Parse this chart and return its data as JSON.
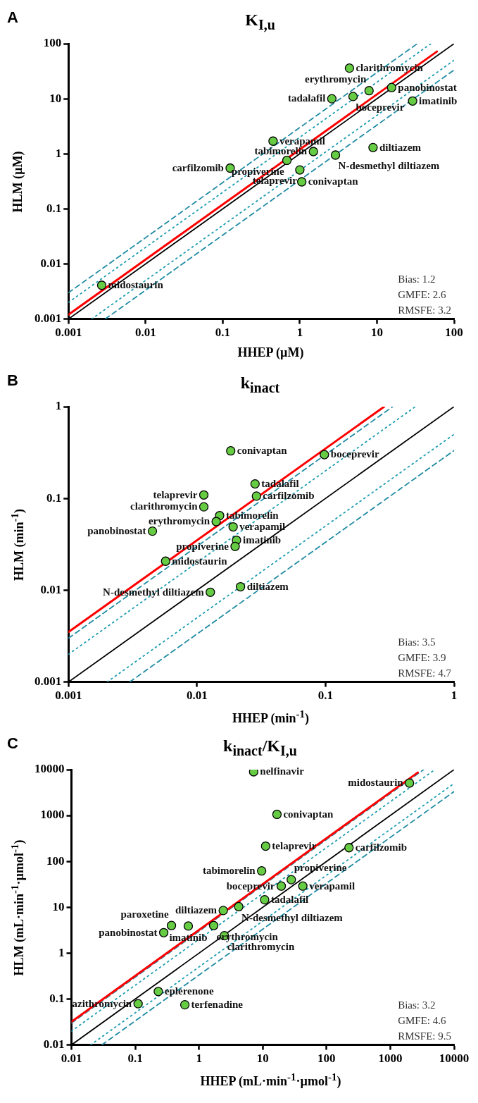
{
  "chart_data": [
    {
      "type": "scatter",
      "title": "K$_{I,u}$",
      "xlabel": "HHEP (µM)",
      "ylabel": "HLM (µM)",
      "log": "xy",
      "grid": false,
      "legend": false,
      "marker": "circle",
      "xlim": [
        0.001,
        100
      ],
      "ylim": [
        0.001,
        100
      ],
      "xticks": [
        0.001,
        0.01,
        0.1,
        1,
        10,
        100
      ],
      "yticks": [
        0.001,
        0.01,
        0.1,
        1,
        10,
        100
      ],
      "series": [
        {
          "color": "#66cc44",
          "x": [
            4.4,
            7.9,
            2.6,
            4.9,
            15.5,
            29,
            0.45,
            1.5,
            8.9,
            2.9,
            0.68,
            0.125,
            1.0,
            1.06,
            0.0027
          ],
          "values": [
            36,
            14,
            10,
            11,
            16,
            9.1,
            1.7,
            1.1,
            1.3,
            0.95,
            0.76,
            0.55,
            0.51,
            0.31,
            0.0041
          ]
        },
        {
          "type": "line",
          "color": "#ff0000",
          "marker": "none",
          "line_style": "solid",
          "x": [
            0.001,
            60
          ],
          "values": [
            0.0012,
            72
          ]
        },
        {
          "type": "line",
          "color": "#000000",
          "marker": "none",
          "line_style": "solid",
          "x": [
            0.001,
            100
          ],
          "values": [
            0.001,
            100
          ]
        },
        {
          "type": "line",
          "color": "#1a9cb0",
          "marker": "none",
          "line_style": "dotted",
          "x": [
            0.001,
            50
          ],
          "values": [
            0.002,
            100
          ]
        },
        {
          "type": "line",
          "color": "#1f8ba3",
          "marker": "none",
          "line_style": "dashed",
          "x": [
            0.001,
            33.3
          ],
          "values": [
            0.003,
            100
          ]
        },
        {
          "type": "line",
          "color": "#1a9cb0",
          "marker": "none",
          "line_style": "dotted",
          "x": [
            0.002,
            100
          ],
          "values": [
            0.001,
            50
          ]
        },
        {
          "type": "line",
          "color": "#1f8ba3",
          "marker": "none",
          "line_style": "dashed",
          "x": [
            0.003,
            100
          ],
          "values": [
            0.001,
            33.3
          ]
        }
      ],
      "annotations": [
        "A",
        "Bias: 1.2",
        "GMFE: 2.6",
        "RMSFE: 3.2",
        {
          "text": "clarithromycin",
          "x": 4.4,
          "y": 36
        },
        {
          "text": "erythromycin",
          "x": 7.9,
          "y": 14
        },
        {
          "text": "tadalafil",
          "x": 2.6,
          "y": 10
        },
        {
          "text": "boceprevir",
          "x": 4.9,
          "y": 11
        },
        {
          "text": "panobinostat",
          "x": 15.5,
          "y": 16
        },
        {
          "text": "imatinib",
          "x": 29,
          "y": 9.1
        },
        {
          "text": "verapamil",
          "x": 0.45,
          "y": 1.7
        },
        {
          "text": "tabimorelin",
          "x": 1.5,
          "y": 1.1
        },
        {
          "text": "diltiazem",
          "x": 8.9,
          "y": 1.3
        },
        {
          "text": "N-desmethyl diltiazem",
          "x": 2.9,
          "y": 0.95
        },
        {
          "text": "propiverine",
          "x": 0.68,
          "y": 0.76
        },
        {
          "text": "carfilzomib",
          "x": 0.125,
          "y": 0.55
        },
        {
          "text": "telaprevir",
          "x": 1.0,
          "y": 0.51
        },
        {
          "text": "conivaptan",
          "x": 1.06,
          "y": 0.31
        },
        {
          "text": "midostaurin",
          "x": 0.0027,
          "y": 0.0041
        }
      ]
    },
    {
      "type": "scatter",
      "title": "k$_{inact}$",
      "xlabel": "HHEP (min$^{-1}$)",
      "ylabel": "HLM (min$^{-1}$)",
      "log": "xy",
      "grid": false,
      "legend": false,
      "marker": "circle",
      "xlim": [
        0.001,
        1
      ],
      "ylim": [
        0.001,
        1
      ],
      "xticks": [
        0.001,
        0.01,
        0.1,
        1
      ],
      "yticks": [
        0.001,
        0.01,
        0.1,
        1
      ],
      "series": [
        {
          "color": "#66cc44",
          "x": [
            0.0183,
            0.098,
            0.0283,
            0.029,
            0.0113,
            0.0113,
            0.015,
            0.0141,
            0.0191,
            0.0045,
            0.0203,
            0.0198,
            0.0057,
            0.0218,
            0.0127
          ],
          "values": [
            0.33,
            0.3,
            0.144,
            0.106,
            0.109,
            0.081,
            0.065,
            0.056,
            0.049,
            0.044,
            0.035,
            0.03,
            0.0207,
            0.0109,
            0.0095
          ]
        },
        {
          "type": "line",
          "color": "#ff0000",
          "marker": "none",
          "line_style": "solid",
          "x": [
            0.001,
            0.286
          ],
          "values": [
            0.0035,
            1
          ]
        },
        {
          "type": "line",
          "color": "#000000",
          "marker": "none",
          "line_style": "solid",
          "x": [
            0.001,
            1
          ],
          "values": [
            0.001,
            1
          ]
        },
        {
          "type": "line",
          "color": "#1a9cb0",
          "marker": "none",
          "line_style": "dotted",
          "x": [
            0.001,
            0.5
          ],
          "values": [
            0.002,
            1
          ]
        },
        {
          "type": "line",
          "color": "#1f8ba3",
          "marker": "none",
          "line_style": "dashed",
          "x": [
            0.001,
            0.333
          ],
          "values": [
            0.003,
            1
          ]
        },
        {
          "type": "line",
          "color": "#1a9cb0",
          "marker": "none",
          "line_style": "dotted",
          "x": [
            0.002,
            1
          ],
          "values": [
            0.001,
            0.5
          ]
        },
        {
          "type": "line",
          "color": "#1f8ba3",
          "marker": "none",
          "line_style": "dashed",
          "x": [
            0.003,
            1
          ],
          "values": [
            0.001,
            0.333
          ]
        }
      ],
      "annotations": [
        "B",
        "Bias: 3.5",
        "GMFE: 3.9",
        "RMSFE: 4.7",
        {
          "text": "conivaptan",
          "x": 0.0183,
          "y": 0.33
        },
        {
          "text": "boceprevir",
          "x": 0.098,
          "y": 0.3
        },
        {
          "text": "tadalafil",
          "x": 0.0283,
          "y": 0.144
        },
        {
          "text": "carfilzomib",
          "x": 0.029,
          "y": 0.106
        },
        {
          "text": "telaprevir",
          "x": 0.0113,
          "y": 0.109
        },
        {
          "text": "clarithromycin",
          "x": 0.0113,
          "y": 0.081
        },
        {
          "text": "tabimorelin",
          "x": 0.015,
          "y": 0.065
        },
        {
          "text": "erythromycin",
          "x": 0.0141,
          "y": 0.056
        },
        {
          "text": "verapamil",
          "x": 0.0191,
          "y": 0.049
        },
        {
          "text": "panobinostat",
          "x": 0.0045,
          "y": 0.044
        },
        {
          "text": "imatinib",
          "x": 0.0203,
          "y": 0.035
        },
        {
          "text": "propiverine",
          "x": 0.0198,
          "y": 0.03
        },
        {
          "text": "midostaurin",
          "x": 0.0057,
          "y": 0.0207
        },
        {
          "text": "diltiazem",
          "x": 0.0218,
          "y": 0.0109
        },
        {
          "text": "N-desmethyl diltiazem",
          "x": 0.0127,
          "y": 0.0095
        }
      ]
    },
    {
      "type": "scatter",
      "title": "k$_{inact}$/K$_{I,u}$",
      "xlabel": "HHEP (mL·min$^{-1}$·µmol$^{-1}$)",
      "ylabel": "HLM (mL·min$^{-1}$·µmol$^{-1}$)",
      "log": "xy",
      "grid": false,
      "legend": false,
      "marker": "circle",
      "xlim": [
        0.01,
        10000
      ],
      "ylim": [
        0.01,
        10000
      ],
      "xticks": [
        0.01,
        0.1,
        1,
        10,
        100,
        1000,
        10000
      ],
      "yticks": [
        0.01,
        0.1,
        1,
        10,
        100,
        1000,
        10000
      ],
      "series": [
        {
          "color": "#66cc44",
          "x": [
            7.2,
            2000,
            16.7,
            11.1,
            225,
            9.6,
            28,
            19.5,
            42.5,
            10.7,
            4.2,
            2.4,
            0.37,
            0.68,
            1.7,
            0.28,
            2.5,
            0.23,
            0.111,
            0.6
          ],
          "values": [
            9000,
            5100,
            1060,
            215,
            199,
            62,
            40,
            29,
            29,
            14.6,
            10.3,
            8.5,
            4.0,
            3.9,
            4.0,
            2.8,
            2.4,
            0.146,
            0.079,
            0.075
          ]
        },
        {
          "type": "line",
          "color": "#ff0000",
          "marker": "none",
          "line_style": "solid",
          "x": [
            0.01,
            2700
          ],
          "values": [
            0.032,
            8640
          ]
        },
        {
          "type": "line",
          "color": "#000000",
          "marker": "none",
          "line_style": "solid",
          "x": [
            0.01,
            10000
          ],
          "values": [
            0.01,
            10000
          ]
        },
        {
          "type": "line",
          "color": "#1a9cb0",
          "marker": "none",
          "line_style": "dotted",
          "x": [
            0.01,
            5000
          ],
          "values": [
            0.02,
            10000
          ]
        },
        {
          "type": "line",
          "color": "#1f8ba3",
          "marker": "none",
          "line_style": "dashed",
          "x": [
            0.01,
            3333
          ],
          "values": [
            0.03,
            10000
          ]
        },
        {
          "type": "line",
          "color": "#1a9cb0",
          "marker": "none",
          "line_style": "dotted",
          "x": [
            0.02,
            10000
          ],
          "values": [
            0.01,
            5000
          ]
        },
        {
          "type": "line",
          "color": "#1f8ba3",
          "marker": "none",
          "line_style": "dashed",
          "x": [
            0.03,
            10000
          ],
          "values": [
            0.01,
            3333
          ]
        }
      ],
      "annotations": [
        "C",
        "Bias: 3.2",
        "GMFE: 4.6",
        "RMSFE: 9.5",
        {
          "text": "nelfinavir",
          "x": 7.2,
          "y": 9000
        },
        {
          "text": "midostaurin",
          "x": 2000,
          "y": 5100
        },
        {
          "text": "conivaptan",
          "x": 16.7,
          "y": 1060
        },
        {
          "text": "telaprevir",
          "x": 11.1,
          "y": 215
        },
        {
          "text": "carfilzomib",
          "x": 225,
          "y": 199
        },
        {
          "text": "tabimorelin",
          "x": 9.6,
          "y": 62
        },
        {
          "text": "propiverine",
          "x": 28,
          "y": 40
        },
        {
          "text": "boceprevir",
          "x": 19.5,
          "y": 29
        },
        {
          "text": "verapamil",
          "x": 42.5,
          "y": 29
        },
        {
          "text": "tadalafil",
          "x": 10.7,
          "y": 14.6
        },
        {
          "text": "N-desmethyl diltiazem",
          "x": 4.2,
          "y": 10.3
        },
        {
          "text": "diltiazem",
          "x": 2.4,
          "y": 8.5
        },
        {
          "text": "paroxetine",
          "x": 0.37,
          "y": 4.0
        },
        {
          "text": "imatinib",
          "x": 0.68,
          "y": 3.9
        },
        {
          "text": "erythromycin",
          "x": 1.7,
          "y": 4.0
        },
        {
          "text": "panobinostat",
          "x": 0.28,
          "y": 2.8
        },
        {
          "text": "clarithromycin",
          "x": 2.5,
          "y": 2.4
        },
        {
          "text": "eplerenone",
          "x": 0.23,
          "y": 0.146
        },
        {
          "text": "azithromycin",
          "x": 0.111,
          "y": 0.079
        },
        {
          "text": "terfenadine",
          "x": 0.6,
          "y": 0.075
        }
      ]
    }
  ]
}
